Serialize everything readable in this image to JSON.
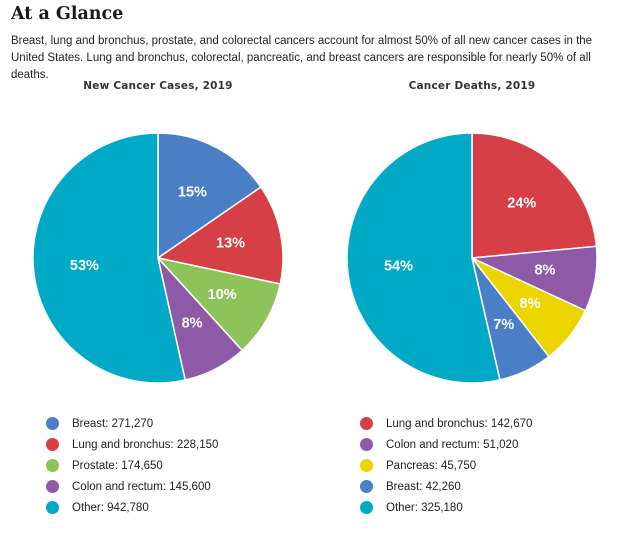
{
  "page": {
    "title": "At a Glance",
    "intro": "Breast, lung and bronchus, prostate, and colorectal cancers account for almost 50% of all new cancer cases in the United States. Lung and bronchus, colorectal, pancreatic, and breast cancers are responsible for nearly 50% of all deaths."
  },
  "chart_data": [
    {
      "type": "pie",
      "title": "New Cancer Cases, 2019",
      "slices": [
        {
          "name": "Breast",
          "value": 271270,
          "label": "15%",
          "legend": "Breast: 271,270",
          "color": "#4a7fc6"
        },
        {
          "name": "Lung and bronchus",
          "value": 228150,
          "label": "13%",
          "legend": "Lung and bronchus: 228,150",
          "color": "#d63f46"
        },
        {
          "name": "Prostate",
          "value": 174650,
          "label": "10%",
          "legend": "Prostate: 174,650",
          "color": "#8dc35a"
        },
        {
          "name": "Colon and rectum",
          "value": 145600,
          "label": "8%",
          "legend": "Colon and rectum: 145,600",
          "color": "#8e5aa8"
        },
        {
          "name": "Other",
          "value": 942780,
          "label": "53%",
          "legend": "Other: 942,780",
          "color": "#00a9c6"
        }
      ]
    },
    {
      "type": "pie",
      "title": "Cancer Deaths, 2019",
      "slices": [
        {
          "name": "Lung and bronchus",
          "value": 142670,
          "label": "24%",
          "legend": "Lung and bronchus: 142,670",
          "color": "#d63f46"
        },
        {
          "name": "Colon and rectum",
          "value": 51020,
          "label": "8%",
          "legend": "Colon and rectum: 51,020",
          "color": "#8e5aa8"
        },
        {
          "name": "Pancreas",
          "value": 45750,
          "label": "8%",
          "legend": "Pancreas: 45,750",
          "color": "#ecd400"
        },
        {
          "name": "Breast",
          "value": 42260,
          "label": "7%",
          "legend": "Breast: 42,260",
          "color": "#4a7fc6"
        },
        {
          "name": "Other",
          "value": 325180,
          "label": "54%",
          "legend": "Other: 325,180",
          "color": "#00a9c6"
        }
      ]
    }
  ]
}
